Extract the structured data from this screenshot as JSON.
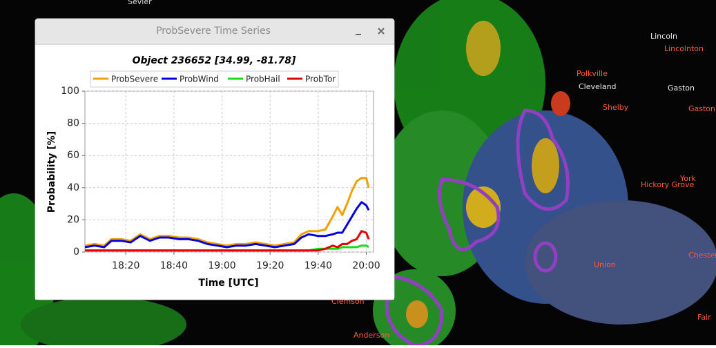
{
  "window": {
    "title": "ProbSevere Time Series"
  },
  "map_labels": [
    "Sevier",
    "Lincoln",
    "Lincolnton",
    "Gaston",
    "Gastonia",
    "Shelby",
    "Polkville",
    "Cleveland",
    "Hickory Grove",
    "York",
    "Chester",
    "Clemson",
    "Anderson",
    "Union",
    "Fair"
  ],
  "chart_data": {
    "type": "line",
    "title": "Object 236652 [34.99, -81.78]",
    "x_label": "Time [UTC]",
    "y_label": "Probability [%]",
    "x": [
      "18:03",
      "18:07",
      "18:11",
      "18:14",
      "18:18",
      "18:22",
      "18:26",
      "18:30",
      "18:34",
      "18:38",
      "18:42",
      "18:46",
      "18:50",
      "18:54",
      "18:58",
      "19:02",
      "19:06",
      "19:10",
      "19:14",
      "19:18",
      "19:22",
      "19:26",
      "19:30",
      "19:33",
      "19:36",
      "19:40",
      "19:43",
      "19:46",
      "19:48",
      "19:50",
      "19:52",
      "19:54",
      "19:56",
      "19:58",
      "20:00",
      "20:01"
    ],
    "xlim": [
      "18:03",
      "20:03"
    ],
    "xticks": [
      "18:20",
      "18:40",
      "19:00",
      "19:20",
      "19:40",
      "20:00"
    ],
    "ylim": [
      0,
      100
    ],
    "yticks": [
      0,
      20,
      40,
      60,
      80,
      100
    ],
    "grid": true,
    "legend": "top",
    "series": [
      {
        "name": "ProbSevere",
        "color": "#f0a000",
        "values": [
          4,
          5,
          4,
          8,
          8,
          7,
          11,
          8,
          10,
          10,
          9,
          9,
          8,
          6,
          5,
          4,
          5,
          5,
          6,
          5,
          4,
          5,
          6,
          11,
          13,
          13,
          14,
          22,
          28,
          23,
          30,
          38,
          44,
          46,
          46,
          40
        ]
      },
      {
        "name": "ProbWind",
        "color": "#0000e0",
        "values": [
          3,
          4,
          3,
          7,
          7,
          6,
          10,
          7,
          9,
          9,
          8,
          8,
          7,
          5,
          4,
          3,
          4,
          4,
          5,
          4,
          3,
          4,
          5,
          9,
          11,
          10,
          10,
          11,
          12,
          12,
          17,
          22,
          27,
          31,
          29,
          26
        ]
      },
      {
        "name": "ProbHail",
        "color": "#10e010",
        "values": [
          1,
          1,
          1,
          1,
          1,
          1,
          1,
          1,
          1,
          1,
          1,
          1,
          1,
          1,
          1,
          1,
          1,
          1,
          1,
          1,
          1,
          1,
          1,
          1,
          1,
          2,
          2,
          2,
          2,
          3,
          3,
          3,
          3,
          4,
          4,
          3
        ]
      },
      {
        "name": "ProbTor",
        "color": "#e00000",
        "values": [
          1,
          1,
          1,
          1,
          1,
          1,
          1,
          1,
          1,
          1,
          1,
          1,
          1,
          1,
          1,
          1,
          1,
          1,
          1,
          1,
          1,
          1,
          1,
          1,
          1,
          1,
          2,
          4,
          3,
          5,
          5,
          7,
          8,
          13,
          12,
          8
        ]
      }
    ]
  }
}
